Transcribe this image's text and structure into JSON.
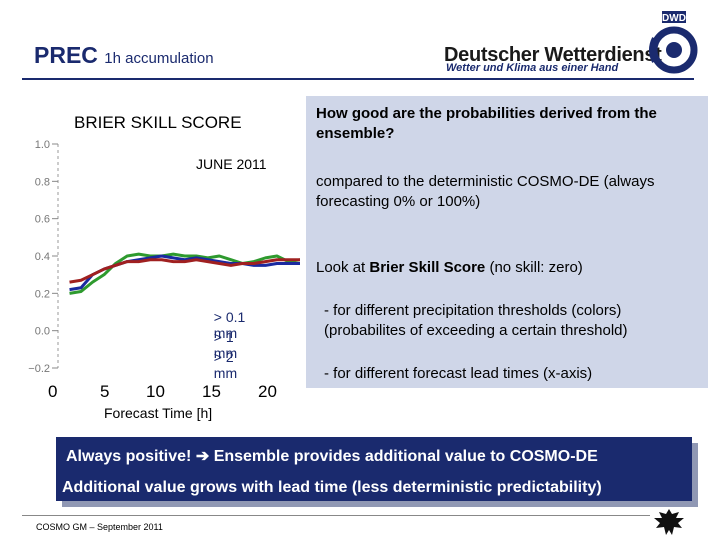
{
  "header": {
    "title_main": "PREC",
    "title_sub": "1h accumulation",
    "org_name": "Deutscher Wetterdienst",
    "org_tagline": "Wetter und Klima aus einer Hand",
    "logo_text": "DWD"
  },
  "chart": {
    "title": "BRIER SKILL SCORE",
    "month": "JUNE 2011",
    "legend": [
      {
        "op": "> 0.1",
        "unit": "mm",
        "color": "#2e9a2e"
      },
      {
        "op": "> 1  ",
        "unit": "mm",
        "color": "#1a2aa0"
      },
      {
        "op": "> 2  ",
        "unit": "mm",
        "color": "#a02020"
      }
    ],
    "xticks": [
      "0",
      "5",
      "10",
      "15",
      "20"
    ],
    "xlabel": "Forecast Time [h]"
  },
  "chart_data": {
    "type": "line",
    "title": "BRIER SKILL SCORE",
    "subtitle": "JUNE 2011",
    "xlabel": "Forecast Time [h]",
    "ylabel": "",
    "xlim": [
      0,
      21
    ],
    "ylim": [
      -0.2,
      1.0
    ],
    "yticks": [
      -0.2,
      0.0,
      0.2,
      0.4,
      0.6,
      0.8,
      1.0
    ],
    "xticks": [
      0,
      5,
      10,
      15,
      20
    ],
    "x": [
      1,
      2,
      3,
      4,
      5,
      6,
      7,
      8,
      9,
      10,
      11,
      12,
      13,
      14,
      15,
      16,
      17,
      18,
      19,
      20,
      21
    ],
    "series": [
      {
        "name": "> 0.1 mm",
        "color": "#2e9a2e",
        "values": [
          0.2,
          0.21,
          0.26,
          0.3,
          0.36,
          0.4,
          0.41,
          0.4,
          0.4,
          0.41,
          0.4,
          0.4,
          0.39,
          0.4,
          0.38,
          0.36,
          0.37,
          0.39,
          0.4,
          0.37,
          0.38
        ]
      },
      {
        "name": "> 1 mm",
        "color": "#1a2aa0",
        "values": [
          0.22,
          0.23,
          0.3,
          0.33,
          0.35,
          0.37,
          0.38,
          0.39,
          0.4,
          0.39,
          0.38,
          0.39,
          0.38,
          0.37,
          0.36,
          0.36,
          0.35,
          0.35,
          0.36,
          0.36,
          0.36
        ]
      },
      {
        "name": "> 2 mm",
        "color": "#a02020",
        "values": [
          0.26,
          0.27,
          0.3,
          0.33,
          0.35,
          0.37,
          0.37,
          0.38,
          0.38,
          0.37,
          0.37,
          0.38,
          0.37,
          0.36,
          0.35,
          0.36,
          0.36,
          0.37,
          0.38,
          0.38,
          0.38
        ]
      }
    ]
  },
  "info": {
    "question": "How good are the probabilities derived from the ensemble?",
    "compared": "compared to the deterministic COSMO-DE (always forecasting 0% or 100%)",
    "look_prefix": "Look at ",
    "look_bold": "Brier Skill Score",
    "look_suffix": " (no skill: zero)",
    "diff_thresholds": "- for different precipitation thresholds (colors) (probabilites of exceeding a certain threshold)",
    "diff_lead": "- for different forecast lead times (x-axis)"
  },
  "banner": {
    "line1_a": "Always positive!",
    "line1_arrow": "➔",
    "line1_b": "Ensemble provides additional value to COSMO-DE",
    "line2": "Additional value grows with lead time (less deterministic predictability)"
  },
  "footer": {
    "text": "COSMO GM  –  September 2011"
  }
}
